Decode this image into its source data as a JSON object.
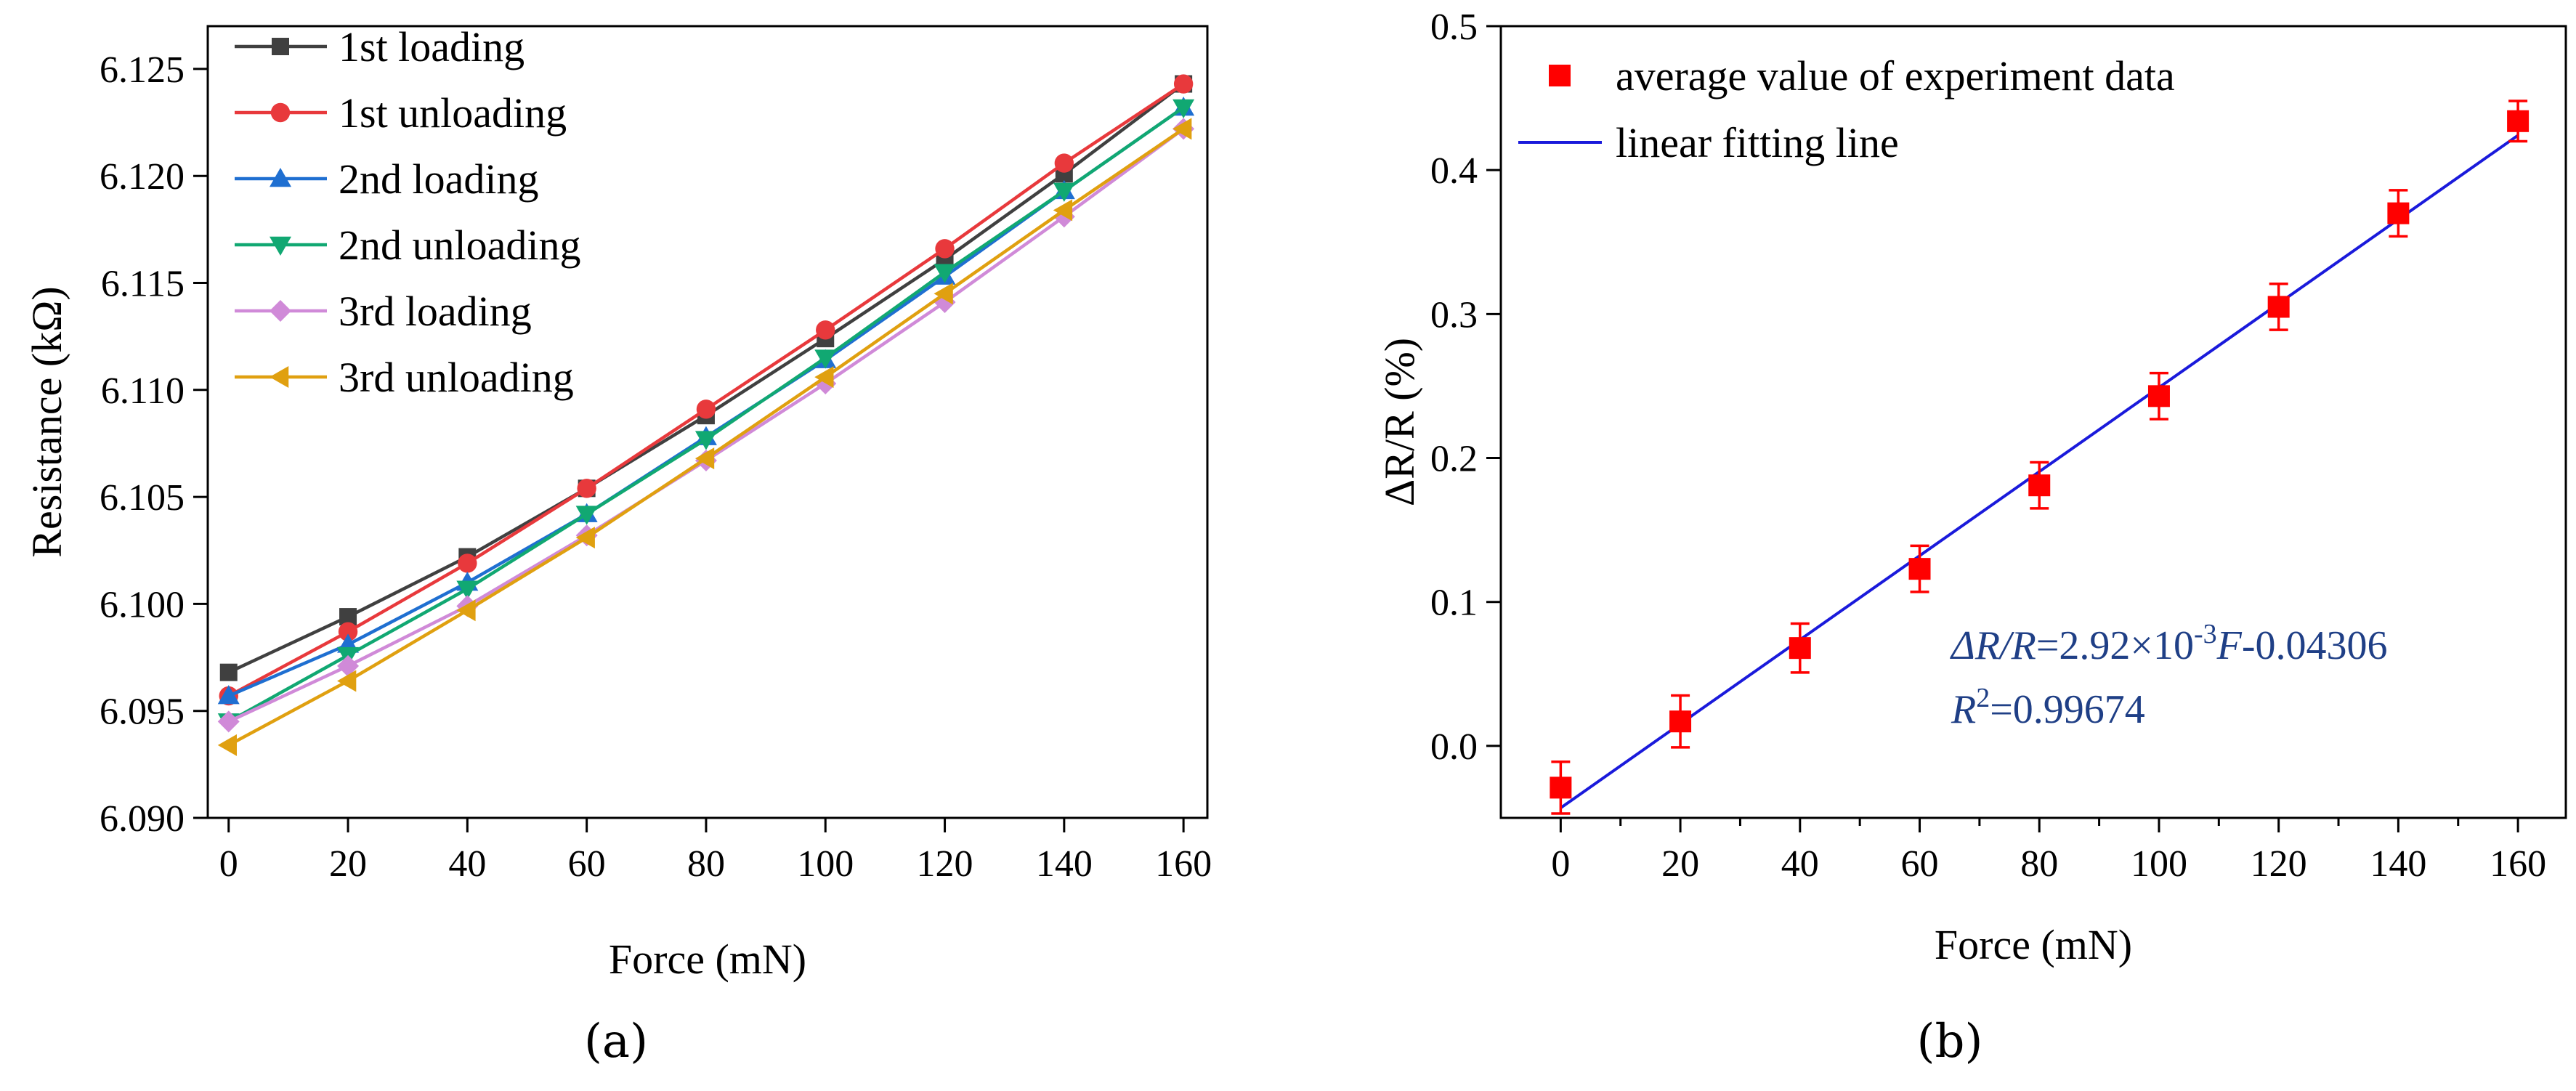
{
  "colors": {
    "loading1": "#404040",
    "unloading1": "#e8393c",
    "loading2": "#1f6fd1",
    "unloading2": "#11a872",
    "loading3": "#d08ad8",
    "unloading3": "#e0a010",
    "avg_marker": "#ff0000",
    "fit_line": "#1a1adb",
    "equation": "#1f3f86"
  },
  "chart_data": [
    {
      "id": "a",
      "type": "line",
      "caption": "(a)",
      "xlabel": "Force (mN)",
      "ylabel": "Resistance (kΩ)",
      "xlim": [
        -3.5,
        164
      ],
      "ylim": [
        6.09,
        6.127
      ],
      "xticks": [
        0,
        20,
        40,
        60,
        80,
        100,
        120,
        140,
        160
      ],
      "yticks": [
        6.09,
        6.095,
        6.1,
        6.105,
        6.11,
        6.115,
        6.12,
        6.125
      ],
      "ytick_labels": [
        "6.090",
        "6.095",
        "6.100",
        "6.105",
        "6.110",
        "6.115",
        "6.120",
        "6.125"
      ],
      "x": [
        0,
        20,
        40,
        60,
        80,
        100,
        120,
        140,
        160
      ],
      "series": [
        {
          "name": "1st loading",
          "marker": "square",
          "color": "#404040",
          "values": [
            6.0968,
            6.0994,
            6.1022,
            6.1054,
            6.1088,
            6.1124,
            6.1161,
            6.1201,
            6.1243
          ]
        },
        {
          "name": "1st unloading",
          "marker": "circle",
          "color": "#e8393c",
          "values": [
            6.0957,
            6.0987,
            6.1019,
            6.1054,
            6.1091,
            6.1128,
            6.1166,
            6.1206,
            6.1243
          ]
        },
        {
          "name": "2nd loading",
          "marker": "triangle-up",
          "color": "#1f6fd1",
          "values": [
            6.0957,
            6.0981,
            6.101,
            6.1042,
            6.1078,
            6.1114,
            6.1153,
            6.1193,
            6.1232
          ]
        },
        {
          "name": "2nd unloading",
          "marker": "triangle-down",
          "color": "#11a872",
          "values": [
            6.0945,
            6.0976,
            6.1007,
            6.1042,
            6.1077,
            6.1115,
            6.1155,
            6.1193,
            6.1232
          ]
        },
        {
          "name": "3rd loading",
          "marker": "diamond",
          "color": "#d08ad8",
          "values": [
            6.0945,
            6.0971,
            6.0999,
            6.1032,
            6.1067,
            6.1103,
            6.1141,
            6.1181,
            6.1222
          ]
        },
        {
          "name": "3rd unloading",
          "marker": "triangle-left",
          "color": "#e0a010",
          "values": [
            6.0934,
            6.0964,
            6.0997,
            6.1031,
            6.1068,
            6.1106,
            6.1145,
            6.1184,
            6.1222
          ]
        }
      ],
      "legend_position": "top-left"
    },
    {
      "id": "b",
      "type": "scatter",
      "caption": "(b)",
      "xlabel": "Force (mN)",
      "ylabel": "ΔR/R (%)",
      "xlim": [
        -10,
        168
      ],
      "ylim": [
        -0.05,
        0.5
      ],
      "xticks": [
        0,
        20,
        40,
        60,
        80,
        100,
        120,
        140,
        160
      ],
      "yticks": [
        0.0,
        0.1,
        0.2,
        0.3,
        0.4,
        0.5
      ],
      "ytick_labels": [
        "0.0",
        "0.1",
        "0.2",
        "0.3",
        "0.4",
        "0.5"
      ],
      "x": [
        0,
        20,
        40,
        60,
        80,
        100,
        120,
        140,
        160
      ],
      "series": [
        {
          "name": "average value of experiment data",
          "marker": "square",
          "color": "#ff0000",
          "values": [
            -0.029,
            0.017,
            0.068,
            0.123,
            0.181,
            0.243,
            0.305,
            0.37,
            0.434
          ],
          "errors": [
            0.018,
            0.018,
            0.017,
            0.016,
            0.016,
            0.016,
            0.016,
            0.016,
            0.014
          ]
        }
      ],
      "fit": {
        "name": "linear fitting line",
        "slope": 0.00292,
        "intercept": -0.04306,
        "x_range": [
          0,
          160
        ],
        "color": "#1a1adb"
      },
      "equation_line1": {
        "lhs": "ΔR/R",
        "eq": "=2.92×10",
        "exp": "-3",
        "var": "F",
        "tail": "-0.04306"
      },
      "equation_line2": {
        "var": "R",
        "exp": "2",
        "tail": "=0.99674"
      },
      "legend_position": "top-left"
    }
  ]
}
